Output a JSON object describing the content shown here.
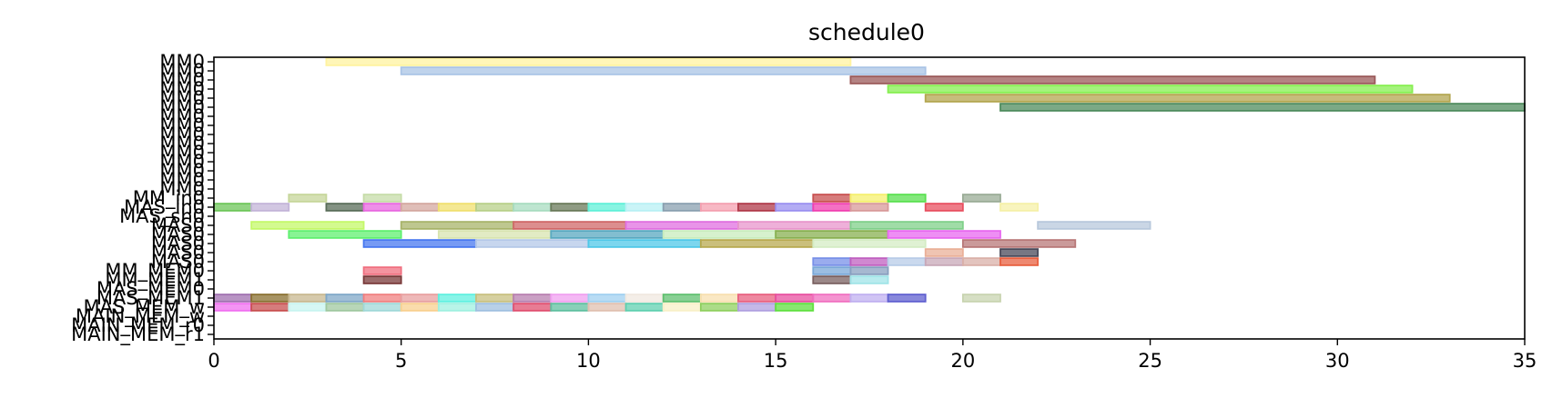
{
  "chart_data": {
    "type": "gantt",
    "title": "schedule0",
    "xlim": [
      0,
      35
    ],
    "x_ticks": [
      0,
      5,
      10,
      15,
      20,
      25,
      30,
      35
    ],
    "grid": false,
    "rows": [
      "MM0",
      "MM0",
      "MM0",
      "MM0",
      "MM0",
      "MM0",
      "MM0",
      "MM0",
      "MM0",
      "MM0",
      "MM0",
      "MM0",
      "MM0",
      "MM0",
      "MM0",
      "MM_in0",
      "MAS_in0",
      "MAS_sh0",
      "MAS0",
      "MAS0",
      "MAS0",
      "MAS0",
      "MAS0",
      "MM_MEM0",
      "MM_MEM1",
      "MAS_MEM0",
      "MAS_MEM1",
      "MAS_MEM_w",
      "MAIN_MEM_w",
      "MAIN_MEM_r0",
      "MAIN_MEM_r1"
    ],
    "tasks": [
      {
        "row": 0,
        "start": 3,
        "end": 17,
        "color": "#fff3a0"
      },
      {
        "row": 1,
        "start": 5,
        "end": 19,
        "color": "#aac4e6"
      },
      {
        "row": 2,
        "start": 17,
        "end": 31,
        "color": "#9b5a5a"
      },
      {
        "row": 3,
        "start": 18,
        "end": 32,
        "color": "#86ef50"
      },
      {
        "row": 4,
        "start": 19,
        "end": 33,
        "color": "#b3a650"
      },
      {
        "row": 5,
        "start": 21,
        "end": 35,
        "color": "#4f8c5e"
      },
      {
        "row": 15,
        "start": 2,
        "end": 3,
        "color": "#c6d69a"
      },
      {
        "row": 15,
        "start": 4,
        "end": 5,
        "color": "#c6dca8"
      },
      {
        "row": 15,
        "start": 16,
        "end": 17,
        "color": "#c85050"
      },
      {
        "row": 15,
        "start": 17,
        "end": 18,
        "color": "#f5f06e"
      },
      {
        "row": 15,
        "start": 18,
        "end": 19,
        "color": "#5ae050"
      },
      {
        "row": 15,
        "start": 20,
        "end": 21,
        "color": "#9aac96"
      },
      {
        "row": 16,
        "start": 0,
        "end": 1,
        "color": "#6ec65a"
      },
      {
        "row": 16,
        "start": 1,
        "end": 2,
        "color": "#c3b4d8"
      },
      {
        "row": 16,
        "start": 3,
        "end": 4,
        "color": "#5a6e5a"
      },
      {
        "row": 16,
        "start": 4,
        "end": 5,
        "color": "#e868e0"
      },
      {
        "row": 16,
        "start": 5,
        "end": 6,
        "color": "#d4a8a0"
      },
      {
        "row": 16,
        "start": 6,
        "end": 7,
        "color": "#f0e070"
      },
      {
        "row": 16,
        "start": 7,
        "end": 8,
        "color": "#b8d08a"
      },
      {
        "row": 16,
        "start": 8,
        "end": 9,
        "color": "#a8dcc0"
      },
      {
        "row": 16,
        "start": 9,
        "end": 10,
        "color": "#6a7a5a"
      },
      {
        "row": 16,
        "start": 10,
        "end": 11,
        "color": "#60f0d8"
      },
      {
        "row": 16,
        "start": 11,
        "end": 12,
        "color": "#b8f0f4"
      },
      {
        "row": 16,
        "start": 12,
        "end": 13,
        "color": "#8aa0b0"
      },
      {
        "row": 16,
        "start": 13,
        "end": 14,
        "color": "#f4a0b0"
      },
      {
        "row": 16,
        "start": 14,
        "end": 15,
        "color": "#b03a4a"
      },
      {
        "row": 16,
        "start": 15,
        "end": 16,
        "color": "#9a90f0"
      },
      {
        "row": 16,
        "start": 16,
        "end": 17,
        "color": "#f040b0"
      },
      {
        "row": 16,
        "start": 17,
        "end": 18,
        "color": "#d89a9a"
      },
      {
        "row": 16,
        "start": 19,
        "end": 20,
        "color": "#e85060"
      },
      {
        "row": 16,
        "start": 21,
        "end": 22,
        "color": "#f5f0a8"
      },
      {
        "row": 18,
        "start": 1,
        "end": 4,
        "color": "#c4f86a"
      },
      {
        "row": 18,
        "start": 5,
        "end": 8,
        "color": "#a8b46a"
      },
      {
        "row": 18,
        "start": 8,
        "end": 11,
        "color": "#d06868"
      },
      {
        "row": 18,
        "start": 11,
        "end": 14,
        "color": "#e070e0"
      },
      {
        "row": 18,
        "start": 14,
        "end": 17,
        "color": "#e896cc"
      },
      {
        "row": 18,
        "start": 17,
        "end": 20,
        "color": "#80d08a"
      },
      {
        "row": 18,
        "start": 22,
        "end": 25,
        "color": "#b8c8dc"
      },
      {
        "row": 19,
        "start": 2,
        "end": 5,
        "color": "#60f070"
      },
      {
        "row": 19,
        "start": 6,
        "end": 9,
        "color": "#d8e4b0"
      },
      {
        "row": 19,
        "start": 9,
        "end": 12,
        "color": "#58a8c0"
      },
      {
        "row": 19,
        "start": 12,
        "end": 15,
        "color": "#c8ecbc"
      },
      {
        "row": 19,
        "start": 15,
        "end": 18,
        "color": "#88b050"
      },
      {
        "row": 19,
        "start": 18,
        "end": 21,
        "color": "#e868f0"
      },
      {
        "row": 20,
        "start": 4,
        "end": 7,
        "color": "#4878f0"
      },
      {
        "row": 20,
        "start": 7,
        "end": 10,
        "color": "#b4c8e8"
      },
      {
        "row": 20,
        "start": 10,
        "end": 13,
        "color": "#50c8e8"
      },
      {
        "row": 20,
        "start": 13,
        "end": 16,
        "color": "#b8aa50"
      },
      {
        "row": 20,
        "start": 16,
        "end": 19,
        "color": "#d4ecc4"
      },
      {
        "row": 20,
        "start": 20,
        "end": 23,
        "color": "#b87878"
      },
      {
        "row": 21,
        "start": 19,
        "end": 20,
        "color": "#eab098"
      },
      {
        "row": 21,
        "start": 21,
        "end": 22,
        "color": "#4a4a5a"
      },
      {
        "row": 22,
        "start": 16,
        "end": 17,
        "color": "#7890e8"
      },
      {
        "row": 22,
        "start": 17,
        "end": 18,
        "color": "#c060c0"
      },
      {
        "row": 22,
        "start": 18,
        "end": 19,
        "color": "#b8cce8"
      },
      {
        "row": 22,
        "start": 19,
        "end": 20,
        "color": "#c8a8b8"
      },
      {
        "row": 22,
        "start": 20,
        "end": 21,
        "color": "#dab0a8"
      },
      {
        "row": 22,
        "start": 21,
        "end": 22,
        "color": "#e86040"
      },
      {
        "row": 23,
        "start": 4,
        "end": 5,
        "color": "#f07080"
      },
      {
        "row": 23,
        "start": 16,
        "end": 17,
        "color": "#7aa8d8"
      },
      {
        "row": 23,
        "start": 17,
        "end": 18,
        "color": "#88a0c0"
      },
      {
        "row": 24,
        "start": 4,
        "end": 5,
        "color": "#7a3a3a"
      },
      {
        "row": 24,
        "start": 16,
        "end": 17,
        "color": "#7a6060"
      },
      {
        "row": 24,
        "start": 17,
        "end": 18,
        "color": "#a0e4e8"
      },
      {
        "row": 26,
        "start": 0,
        "end": 1,
        "color": "#a070b0"
      },
      {
        "row": 26,
        "start": 1,
        "end": 2,
        "color": "#8a7030"
      },
      {
        "row": 26,
        "start": 2,
        "end": 3,
        "color": "#c8b890"
      },
      {
        "row": 26,
        "start": 3,
        "end": 4,
        "color": "#80a8c8"
      },
      {
        "row": 26,
        "start": 4,
        "end": 5,
        "color": "#f08080"
      },
      {
        "row": 26,
        "start": 5,
        "end": 6,
        "color": "#e8a0a0"
      },
      {
        "row": 26,
        "start": 6,
        "end": 7,
        "color": "#60f0e0"
      },
      {
        "row": 26,
        "start": 7,
        "end": 8,
        "color": "#c8c080"
      },
      {
        "row": 26,
        "start": 8,
        "end": 9,
        "color": "#b880b0"
      },
      {
        "row": 26,
        "start": 9,
        "end": 10,
        "color": "#f0a0f0"
      },
      {
        "row": 26,
        "start": 10,
        "end": 11,
        "color": "#a0d0f0"
      },
      {
        "row": 26,
        "start": 11,
        "end": 12,
        "color": "#f0e8e0"
      },
      {
        "row": 26,
        "start": 12,
        "end": 13,
        "color": "#60c070"
      },
      {
        "row": 26,
        "start": 13,
        "end": 14,
        "color": "#f8e0b0"
      },
      {
        "row": 26,
        "start": 14,
        "end": 15,
        "color": "#e86080"
      },
      {
        "row": 26,
        "start": 15,
        "end": 16,
        "color": "#e850a0"
      },
      {
        "row": 26,
        "start": 16,
        "end": 17,
        "color": "#f070c0"
      },
      {
        "row": 26,
        "start": 17,
        "end": 18,
        "color": "#c0b0f0"
      },
      {
        "row": 26,
        "start": 18,
        "end": 19,
        "color": "#6060d0"
      },
      {
        "row": 26,
        "start": 20,
        "end": 21,
        "color": "#c8d4b0"
      },
      {
        "row": 27,
        "start": 0,
        "end": 1,
        "color": "#f070f0"
      },
      {
        "row": 27,
        "start": 1,
        "end": 2,
        "color": "#c85050"
      },
      {
        "row": 27,
        "start": 2,
        "end": 3,
        "color": "#c8f4f0"
      },
      {
        "row": 27,
        "start": 3,
        "end": 4,
        "color": "#a0c8a0"
      },
      {
        "row": 27,
        "start": 4,
        "end": 5,
        "color": "#a0d8d8"
      },
      {
        "row": 27,
        "start": 5,
        "end": 6,
        "color": "#f8d090"
      },
      {
        "row": 27,
        "start": 6,
        "end": 7,
        "color": "#a0f0e0"
      },
      {
        "row": 27,
        "start": 7,
        "end": 8,
        "color": "#a0c0e0"
      },
      {
        "row": 27,
        "start": 8,
        "end": 9,
        "color": "#e05070"
      },
      {
        "row": 27,
        "start": 9,
        "end": 10,
        "color": "#60c0a0"
      },
      {
        "row": 27,
        "start": 10,
        "end": 11,
        "color": "#e0c0b0"
      },
      {
        "row": 27,
        "start": 11,
        "end": 12,
        "color": "#60d0b0"
      },
      {
        "row": 27,
        "start": 12,
        "end": 13,
        "color": "#f8f0c8"
      },
      {
        "row": 27,
        "start": 13,
        "end": 14,
        "color": "#90d060"
      },
      {
        "row": 27,
        "start": 14,
        "end": 15,
        "color": "#b0a0e0"
      },
      {
        "row": 27,
        "start": 15,
        "end": 16,
        "color": "#60e040"
      }
    ]
  }
}
